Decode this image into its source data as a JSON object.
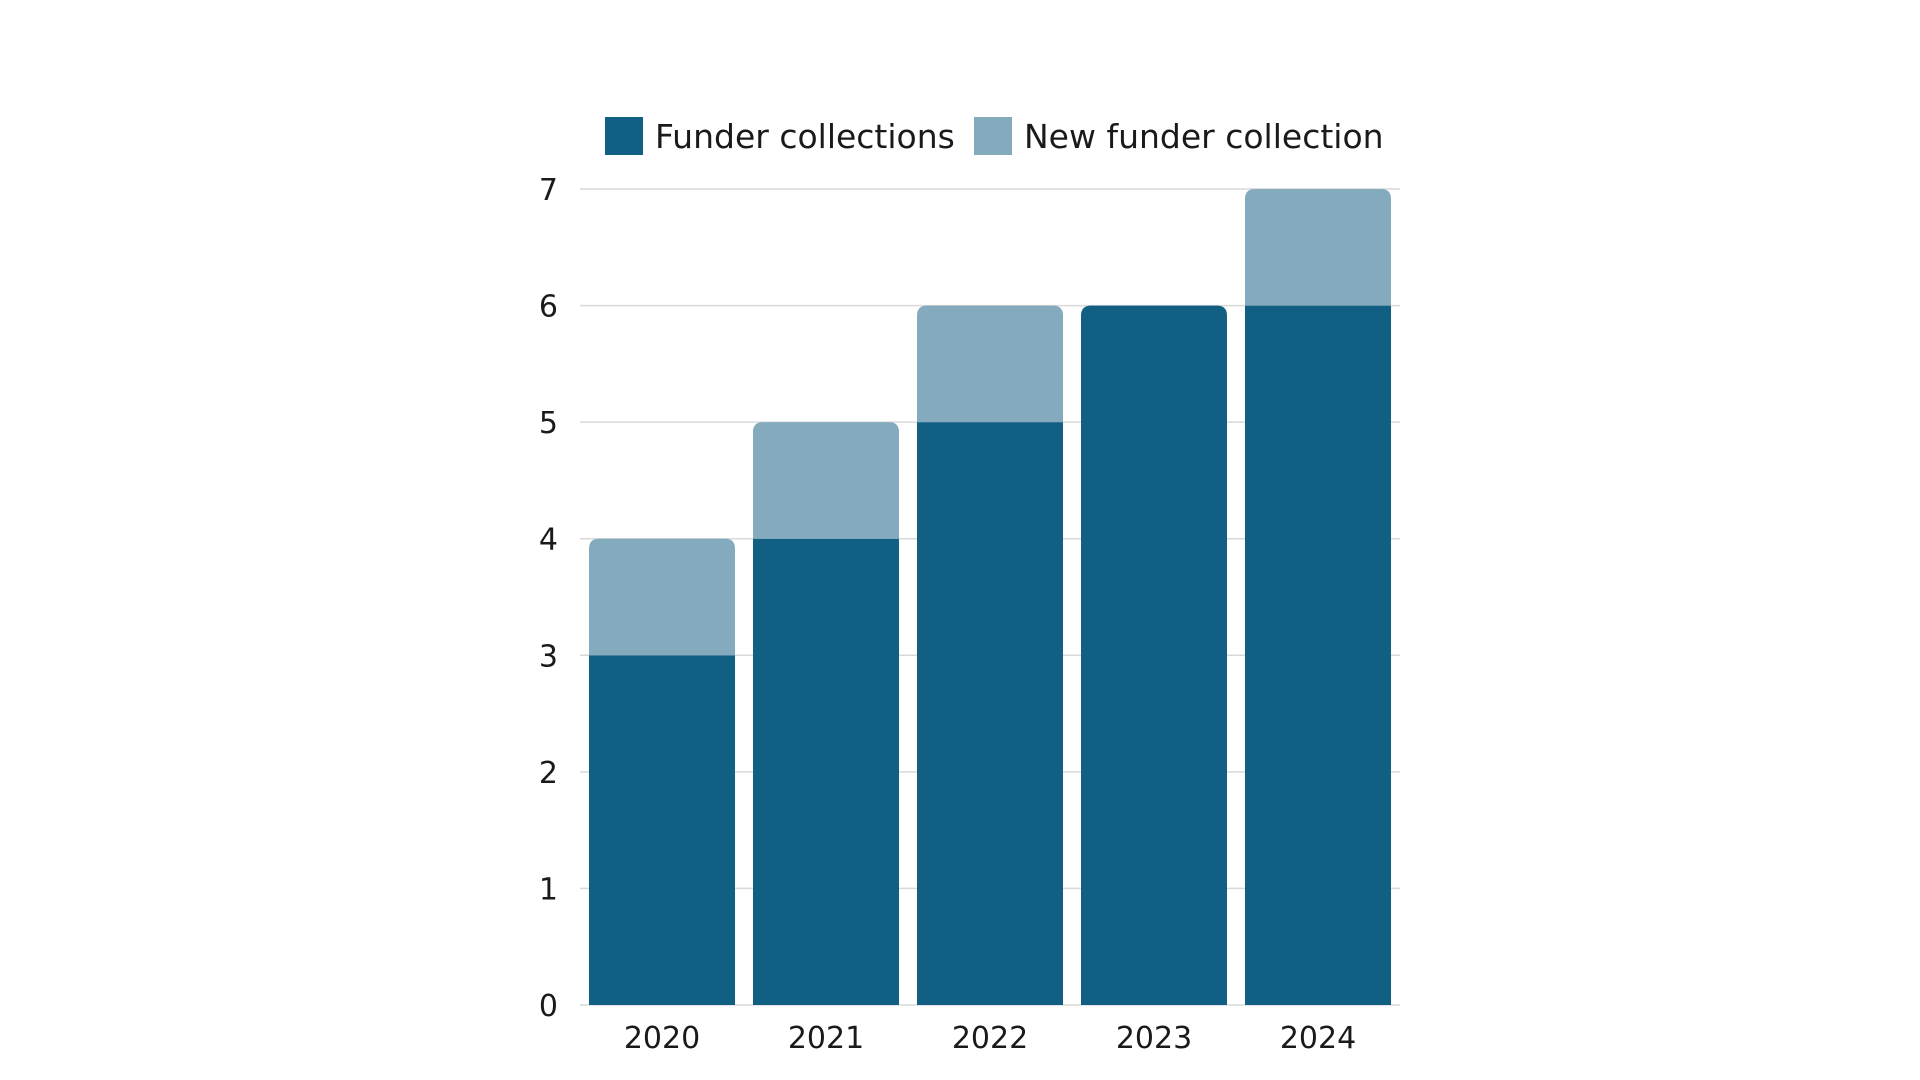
{
  "chart_data": {
    "type": "bar",
    "stacked": true,
    "categories": [
      "2020",
      "2021",
      "2022",
      "2023",
      "2024"
    ],
    "series": [
      {
        "name": "Funder collections",
        "values": [
          3,
          4,
          5,
          6,
          6
        ],
        "color": "#125F84"
      },
      {
        "name": "New funder collection",
        "values": [
          1,
          1,
          1,
          0,
          1
        ],
        "color": "#84AABD"
      }
    ],
    "title": "",
    "xlabel": "",
    "ylabel": "",
    "ylim": [
      0,
      7
    ],
    "yticks": [
      "0",
      "1",
      "2",
      "3",
      "4",
      "5",
      "6",
      "7"
    ],
    "grid": true,
    "legend_position": "top"
  }
}
